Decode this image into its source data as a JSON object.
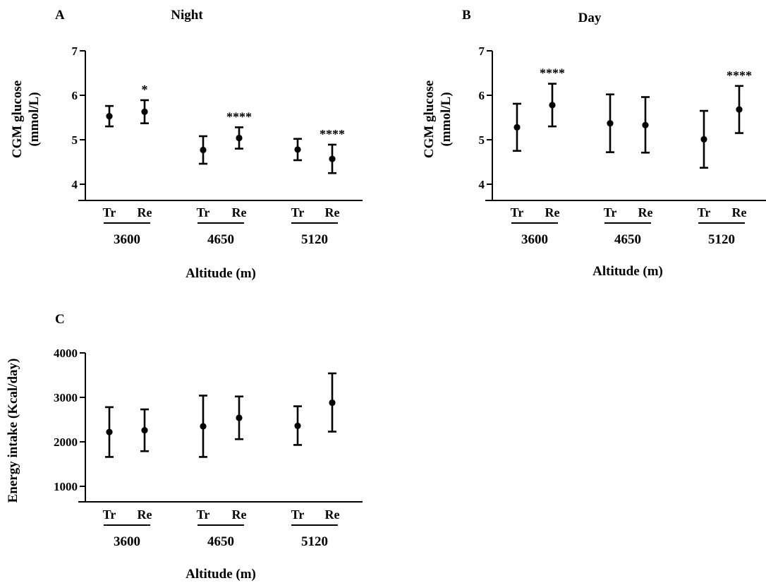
{
  "chart_data": [
    {
      "id": "A",
      "letter": "A",
      "title": "Night",
      "type": "scatter",
      "ylabel": [
        "CGM glucose",
        "(mmol/L)"
      ],
      "xlabel": "Altitude (m)",
      "ylim": [
        4,
        7
      ],
      "yticks": [
        4,
        5,
        6,
        7
      ],
      "groups": [
        "3600",
        "4650",
        "5120"
      ],
      "conditions": [
        "Tr",
        "Re"
      ],
      "points": [
        {
          "group": "3600",
          "cond": "Tr",
          "mean": 5.53,
          "low": 5.3,
          "high": 5.76,
          "sig": ""
        },
        {
          "group": "3600",
          "cond": "Re",
          "mean": 5.63,
          "low": 5.37,
          "high": 5.89,
          "sig": "*"
        },
        {
          "group": "4650",
          "cond": "Tr",
          "mean": 4.77,
          "low": 4.46,
          "high": 5.08,
          "sig": ""
        },
        {
          "group": "4650",
          "cond": "Re",
          "mean": 5.04,
          "low": 4.8,
          "high": 5.28,
          "sig": "****"
        },
        {
          "group": "5120",
          "cond": "Tr",
          "mean": 4.78,
          "low": 4.54,
          "high": 5.02,
          "sig": ""
        },
        {
          "group": "5120",
          "cond": "Re",
          "mean": 4.57,
          "low": 4.25,
          "high": 4.89,
          "sig": "****"
        }
      ]
    },
    {
      "id": "B",
      "letter": "B",
      "title": "Day",
      "type": "scatter",
      "ylabel": [
        "CGM glucose",
        "(mmol/L)"
      ],
      "xlabel": "Altitude (m)",
      "ylim": [
        4,
        7
      ],
      "yticks": [
        4,
        5,
        6,
        7
      ],
      "groups": [
        "3600",
        "4650",
        "5120"
      ],
      "conditions": [
        "Tr",
        "Re"
      ],
      "points": [
        {
          "group": "3600",
          "cond": "Tr",
          "mean": 5.28,
          "low": 4.75,
          "high": 5.81,
          "sig": ""
        },
        {
          "group": "3600",
          "cond": "Re",
          "mean": 5.78,
          "low": 5.3,
          "high": 6.26,
          "sig": "****"
        },
        {
          "group": "4650",
          "cond": "Tr",
          "mean": 5.37,
          "low": 4.72,
          "high": 6.02,
          "sig": ""
        },
        {
          "group": "4650",
          "cond": "Re",
          "mean": 5.33,
          "low": 4.71,
          "high": 5.96,
          "sig": ""
        },
        {
          "group": "5120",
          "cond": "Tr",
          "mean": 5.01,
          "low": 4.37,
          "high": 5.65,
          "sig": ""
        },
        {
          "group": "5120",
          "cond": "Re",
          "mean": 5.68,
          "low": 5.15,
          "high": 6.21,
          "sig": "****"
        }
      ]
    },
    {
      "id": "C",
      "letter": "C",
      "title": "",
      "type": "scatter",
      "ylabel": [
        "Energy intake (Kcal/day)"
      ],
      "xlabel": "Altitude (m)",
      "ylim": [
        1000,
        4000
      ],
      "yticks": [
        1000,
        2000,
        3000,
        4000
      ],
      "groups": [
        "3600",
        "4650",
        "5120"
      ],
      "conditions": [
        "Tr",
        "Re"
      ],
      "points": [
        {
          "group": "3600",
          "cond": "Tr",
          "mean": 2220,
          "low": 1660,
          "high": 2780,
          "sig": ""
        },
        {
          "group": "3600",
          "cond": "Re",
          "mean": 2260,
          "low": 1790,
          "high": 2730,
          "sig": ""
        },
        {
          "group": "4650",
          "cond": "Tr",
          "mean": 2350,
          "low": 1660,
          "high": 3040,
          "sig": ""
        },
        {
          "group": "4650",
          "cond": "Re",
          "mean": 2540,
          "low": 2060,
          "high": 3020,
          "sig": ""
        },
        {
          "group": "5120",
          "cond": "Tr",
          "mean": 2360,
          "low": 1930,
          "high": 2800,
          "sig": ""
        },
        {
          "group": "5120",
          "cond": "Re",
          "mean": 2880,
          "low": 2230,
          "high": 3540,
          "sig": ""
        }
      ]
    }
  ]
}
